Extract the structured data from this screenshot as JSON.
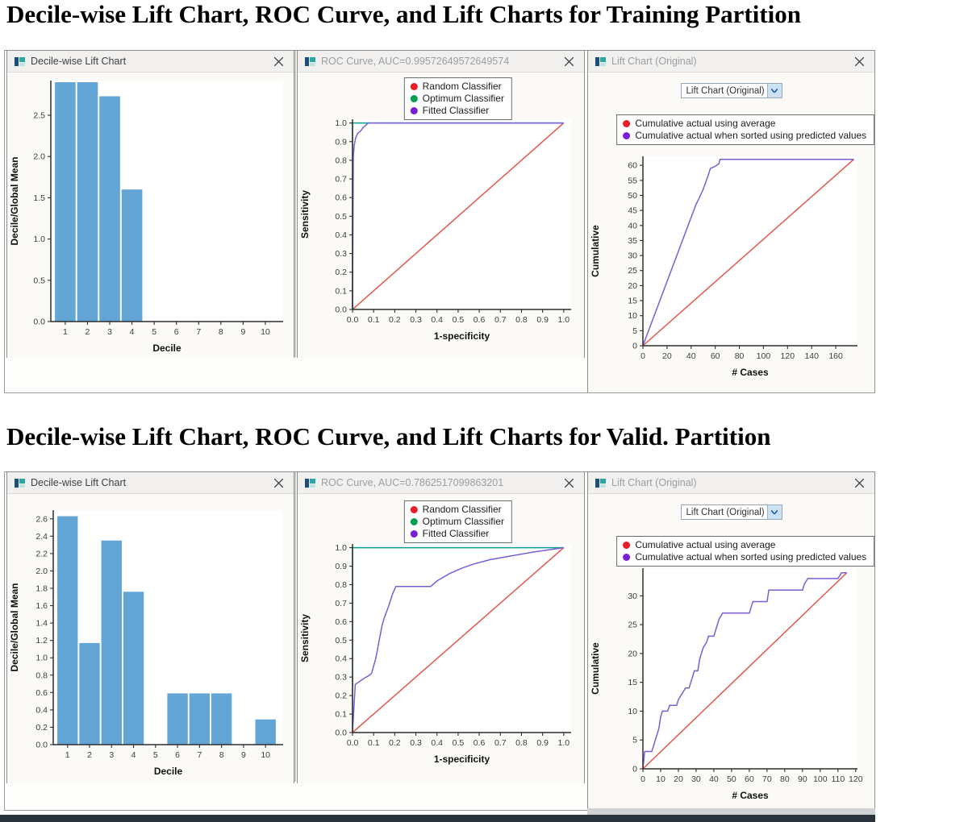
{
  "page": {
    "heading_training": "Decile-wise Lift Chart, ROC Curve, and Lift Charts for Training Partition",
    "heading_validation": "Decile-wise Lift Chart, ROC Curve, and Lift Charts for Valid. Partition"
  },
  "windows": [
    {
      "title": "Decile-wise Lift Chart"
    },
    {
      "title": "ROC Curve, AUC=0.99572649572649574",
      "legend": [
        {
          "label": "Random Classifier",
          "color": "#ee1c25"
        },
        {
          "label": "Optimum Classifier",
          "color": "#00a050"
        },
        {
          "label": "Fitted Classifier",
          "color": "#7a1fd8"
        }
      ]
    },
    {
      "title": "Lift Chart (Original)",
      "dropdown": "Lift Chart (Original)",
      "legend": [
        {
          "label": "Cumulative actual using average",
          "color": "#ee1c25"
        },
        {
          "label": "Cumulative actual when sorted using predicted values",
          "color": "#7a1fd8"
        }
      ]
    },
    {
      "title": "Decile-wise Lift Chart"
    },
    {
      "title": "ROC Curve, AUC=0.7862517099863201",
      "legend": [
        {
          "label": "Random Classifier",
          "color": "#ee1c25"
        },
        {
          "label": "Optimum Classifier",
          "color": "#00a050"
        },
        {
          "label": "Fitted Classifier",
          "color": "#7a1fd8"
        }
      ]
    },
    {
      "title": "Lift Chart (Original)",
      "dropdown": "Lift Chart (Original)",
      "legend": [
        {
          "label": "Cumulative actual using average",
          "color": "#ee1c25"
        },
        {
          "label": "Cumulative actual when sorted using predicted values",
          "color": "#7a1fd8"
        }
      ]
    }
  ],
  "chart_data": [
    {
      "type": "bar",
      "title": "Decile-wise Lift Chart (Training)",
      "categories": [
        1,
        2,
        3,
        4,
        5,
        6,
        7,
        8,
        9,
        10
      ],
      "values": [
        2.9,
        2.9,
        2.73,
        1.6,
        0,
        0,
        0,
        0,
        0,
        0
      ],
      "bar_color": "#63a5d4",
      "xlabel": "Decile",
      "ylabel": "Decile/Global Mean",
      "xlim": [
        0.35,
        10.8
      ],
      "ylim": [
        0,
        2.92
      ],
      "xticks": [
        1,
        2,
        3,
        4,
        5,
        6,
        7,
        8,
        9,
        10
      ],
      "yticks": [
        0,
        0.5,
        1,
        1.5,
        2,
        2.5
      ],
      "xfmt": 0,
      "yfmt": 1
    },
    {
      "type": "line",
      "title": "ROC Curve (Training)",
      "xlabel": "1-specificity",
      "ylabel": "Sensitivity",
      "xlim": [
        0,
        1.035
      ],
      "ylim": [
        0,
        1.02
      ],
      "xticks": [
        0,
        0.1,
        0.2,
        0.3,
        0.4,
        0.5,
        0.6,
        0.7,
        0.8,
        0.9,
        1
      ],
      "yticks": [
        0,
        0.1,
        0.2,
        0.3,
        0.4,
        0.5,
        0.6,
        0.7,
        0.8,
        0.9,
        1
      ],
      "xfmt": 1,
      "yfmt": 1,
      "legend_position": "top-center",
      "series": [
        {
          "name": "Random Classifier",
          "color": "#e1584b",
          "points": [
            [
              0,
              0
            ],
            [
              1,
              1
            ]
          ]
        },
        {
          "name": "Optimum Classifier",
          "color": "#00a28a",
          "points": [
            [
              0,
              0
            ],
            [
              0,
              1
            ],
            [
              1,
              1
            ]
          ]
        },
        {
          "name": "Fitted Classifier",
          "color": "#7b5dd6",
          "points": [
            [
              0,
              0
            ],
            [
              0.004,
              0.82
            ],
            [
              0.008,
              0.88
            ],
            [
              0.015,
              0.92
            ],
            [
              0.025,
              0.945
            ],
            [
              0.04,
              0.96
            ],
            [
              0.05,
              0.975
            ],
            [
              0.065,
              0.99
            ],
            [
              0.075,
              1.0
            ],
            [
              1,
              1
            ]
          ]
        }
      ]
    },
    {
      "type": "line",
      "title": "Lift Chart Original (Training)",
      "xlabel": "# Cases",
      "ylabel": "Cumulative",
      "xlim": [
        0,
        178
      ],
      "ylim": [
        0,
        63
      ],
      "xticks": [
        0,
        20,
        40,
        60,
        80,
        100,
        120,
        140,
        160
      ],
      "yticks": [
        0,
        5,
        10,
        15,
        20,
        25,
        30,
        35,
        40,
        45,
        50,
        55,
        60
      ],
      "xfmt": 0,
      "yfmt": 0,
      "legend_position": "top-center",
      "series": [
        {
          "name": "Cumulative actual using average",
          "color": "#e1584b",
          "points": [
            [
              0,
              0
            ],
            [
              175,
              62
            ]
          ]
        },
        {
          "name": "Cumulative actual when sorted using predicted values",
          "color": "#7b5dd6",
          "points": [
            [
              0,
              0
            ],
            [
              44,
              47
            ],
            [
              46,
              48.5
            ],
            [
              50,
              52
            ],
            [
              54,
              56.5
            ],
            [
              56,
              59
            ],
            [
              59,
              59.5
            ],
            [
              61,
              60
            ],
            [
              63,
              60.5
            ],
            [
              64,
              62
            ],
            [
              67,
              62
            ],
            [
              175,
              62
            ]
          ]
        }
      ]
    },
    {
      "type": "bar",
      "title": "Decile-wise Lift Chart (Validation)",
      "categories": [
        1,
        2,
        3,
        4,
        5,
        6,
        7,
        8,
        9,
        10
      ],
      "values": [
        2.63,
        1.17,
        2.35,
        1.76,
        0,
        0.59,
        0.59,
        0.59,
        0,
        0.29
      ],
      "bar_color": "#63a5d4",
      "xlabel": "Decile",
      "ylabel": "Decile/Global Mean",
      "xlim": [
        0.35,
        10.8
      ],
      "ylim": [
        0,
        2.7
      ],
      "xticks": [
        1,
        2,
        3,
        4,
        5,
        6,
        7,
        8,
        9,
        10
      ],
      "yticks": [
        0,
        0.2,
        0.4,
        0.6,
        0.8,
        1.0,
        1.2,
        1.4,
        1.6,
        1.8,
        2.0,
        2.2,
        2.4,
        2.6
      ],
      "xfmt": 0,
      "yfmt": 1
    },
    {
      "type": "line",
      "title": "ROC Curve (Validation)",
      "xlabel": "1-specificity",
      "ylabel": "Sensitivity",
      "xlim": [
        0,
        1.035
      ],
      "ylim": [
        0,
        1.02
      ],
      "xticks": [
        0,
        0.1,
        0.2,
        0.3,
        0.4,
        0.5,
        0.6,
        0.7,
        0.8,
        0.9,
        1
      ],
      "yticks": [
        0,
        0.1,
        0.2,
        0.3,
        0.4,
        0.5,
        0.6,
        0.7,
        0.8,
        0.9,
        1
      ],
      "xfmt": 1,
      "yfmt": 1,
      "legend_position": "top-center",
      "series": [
        {
          "name": "Random Classifier",
          "color": "#e1584b",
          "points": [
            [
              0,
              0
            ],
            [
              1,
              1
            ]
          ]
        },
        {
          "name": "Optimum Classifier",
          "color": "#00a28a",
          "points": [
            [
              0,
              0
            ],
            [
              0,
              1
            ],
            [
              1,
              1
            ]
          ]
        },
        {
          "name": "Fitted Classifier",
          "color": "#7b5dd6",
          "points": [
            [
              0,
              0
            ],
            [
              0.013,
              0.26
            ],
            [
              0.05,
              0.29
            ],
            [
              0.08,
              0.31
            ],
            [
              0.09,
              0.32
            ],
            [
              0.11,
              0.4
            ],
            [
              0.12,
              0.46
            ],
            [
              0.13,
              0.52
            ],
            [
              0.14,
              0.58
            ],
            [
              0.15,
              0.62
            ],
            [
              0.17,
              0.68
            ],
            [
              0.19,
              0.75
            ],
            [
              0.205,
              0.79
            ],
            [
              0.37,
              0.79
            ],
            [
              0.4,
              0.82
            ],
            [
              0.46,
              0.86
            ],
            [
              0.52,
              0.89
            ],
            [
              0.57,
              0.91
            ],
            [
              0.65,
              0.935
            ],
            [
              0.75,
              0.955
            ],
            [
              0.85,
              0.975
            ],
            [
              1,
              1
            ]
          ]
        }
      ]
    },
    {
      "type": "line",
      "title": "Lift Chart Original (Validation)",
      "xlabel": "# Cases",
      "ylabel": "Cumulative",
      "xlim": [
        0,
        121
      ],
      "ylim": [
        0,
        34.8
      ],
      "xticks": [
        0,
        10,
        20,
        30,
        40,
        50,
        60,
        70,
        80,
        90,
        100,
        110,
        120
      ],
      "yticks": [
        0,
        5,
        10,
        15,
        20,
        25,
        30
      ],
      "xfmt": 0,
      "yfmt": 0,
      "legend_position": "top-center",
      "series": [
        {
          "name": "Cumulative actual using average",
          "color": "#e1584b",
          "points": [
            [
              0,
              0
            ],
            [
              115,
              34
            ]
          ]
        },
        {
          "name": "Cumulative actual when sorted using predicted values",
          "color": "#7b5dd6",
          "points": [
            [
              0,
              0
            ],
            [
              1,
              3
            ],
            [
              5,
              3
            ],
            [
              6,
              4
            ],
            [
              7,
              5
            ],
            [
              8,
              6
            ],
            [
              9,
              7
            ],
            [
              10,
              9
            ],
            [
              11,
              10
            ],
            [
              14,
              10
            ],
            [
              15,
              11
            ],
            [
              19,
              11
            ],
            [
              20,
              12
            ],
            [
              22,
              13
            ],
            [
              24,
              14
            ],
            [
              26,
              14
            ],
            [
              27,
              15
            ],
            [
              28,
              16
            ],
            [
              29,
              17
            ],
            [
              31,
              17
            ],
            [
              32,
              19
            ],
            [
              33,
              20
            ],
            [
              34,
              21
            ],
            [
              36,
              22
            ],
            [
              37,
              23
            ],
            [
              40,
              23
            ],
            [
              41,
              24
            ],
            [
              42,
              25
            ],
            [
              43,
              26
            ],
            [
              45,
              27
            ],
            [
              60,
              27
            ],
            [
              61,
              28
            ],
            [
              62,
              29
            ],
            [
              70,
              29
            ],
            [
              71,
              31
            ],
            [
              90,
              31
            ],
            [
              91,
              32
            ],
            [
              93,
              33
            ],
            [
              110,
              33
            ],
            [
              112,
              34
            ],
            [
              115,
              34
            ]
          ]
        }
      ]
    }
  ]
}
